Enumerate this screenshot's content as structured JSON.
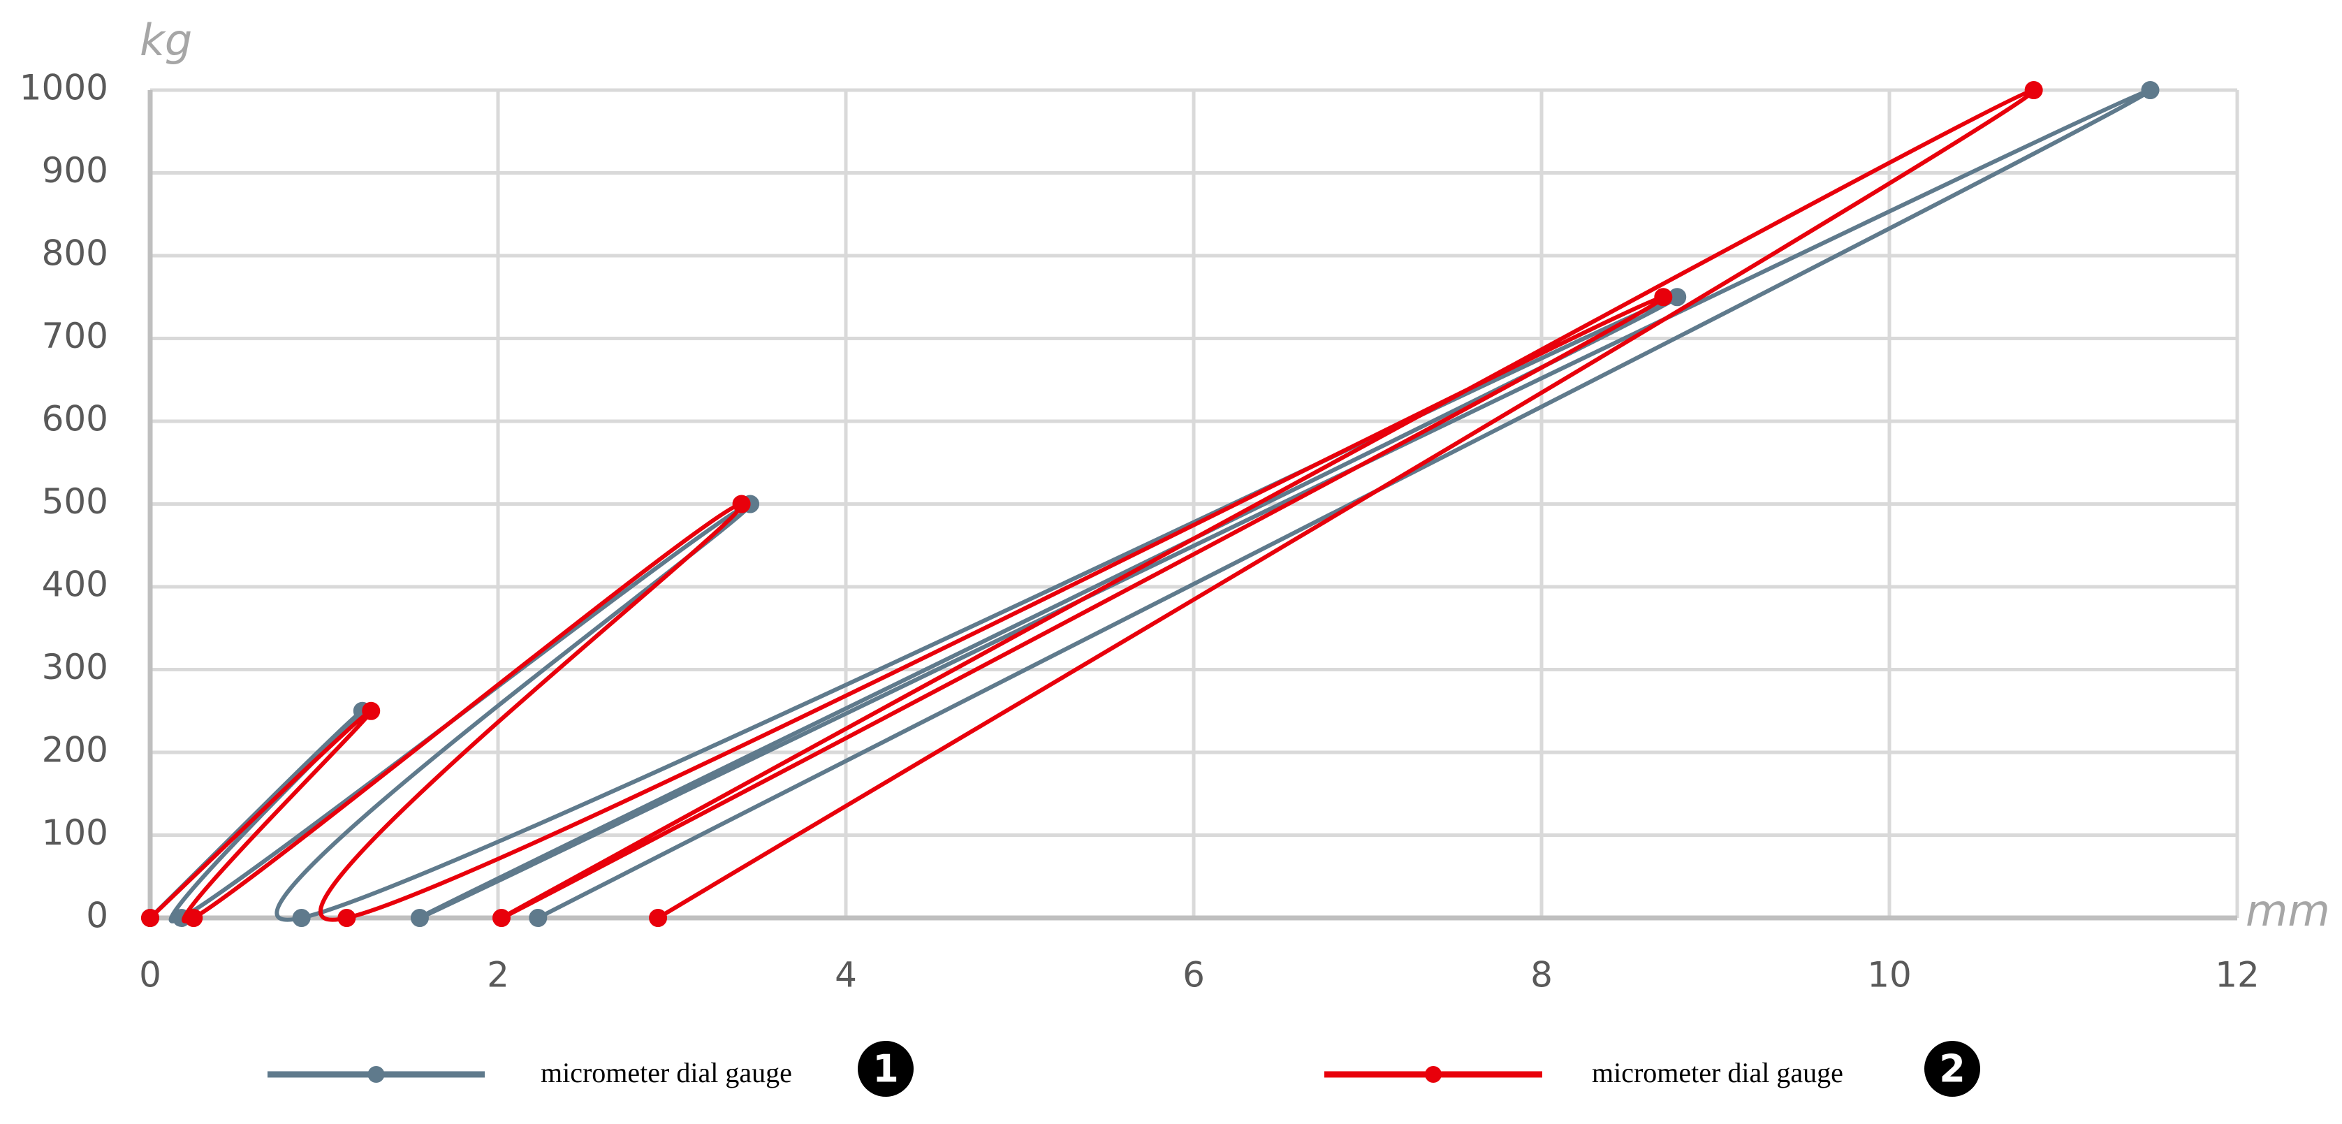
{
  "chart_data": {
    "type": "line",
    "smooth": true,
    "xlabel": "mm",
    "ylabel": "kg",
    "xlim": [
      0,
      12
    ],
    "ylim": [
      0,
      1000
    ],
    "xticks": [
      0,
      2,
      4,
      6,
      8,
      10,
      12
    ],
    "yticks": [
      0,
      100,
      200,
      300,
      400,
      500,
      600,
      700,
      800,
      900,
      1000
    ],
    "grid": true,
    "legend": "bottom",
    "series": [
      {
        "name": "micrometer dial gauge",
        "badge": "1",
        "color": "#5f7a8c",
        "x": [
          0,
          1.22,
          0.18,
          3.45,
          0.87,
          8.78,
          1.55,
          11.5,
          2.23
        ],
        "values": [
          0,
          250,
          0,
          500,
          0,
          750,
          0,
          1000,
          0
        ]
      },
      {
        "name": "micrometer dial gauge",
        "badge": "2",
        "color": "#e8000b",
        "x": [
          0,
          1.27,
          0.25,
          3.4,
          1.13,
          8.7,
          2.02,
          10.83,
          2.92
        ],
        "values": [
          0,
          250,
          0,
          500,
          0,
          750,
          0,
          1000,
          0
        ]
      }
    ]
  }
}
